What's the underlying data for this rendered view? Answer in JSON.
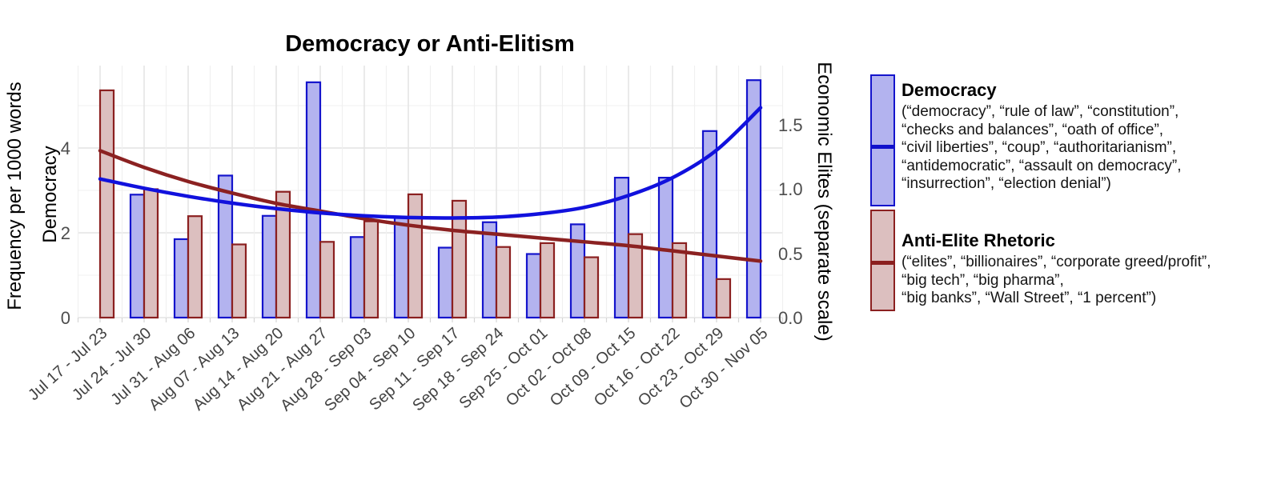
{
  "title": "Democracy or Anti-Elitism",
  "axes": {
    "left_outer_label": "Frequency per 1000 words",
    "left_label": "Democracy",
    "right_label": "Economic Elites (separate scale)",
    "left_ticks": [
      "0",
      "2",
      "4"
    ],
    "right_ticks": [
      "0.0",
      "0.5",
      "1.0",
      "1.5"
    ]
  },
  "colors": {
    "democracy_fill": "#b3b3ef",
    "democracy_stroke": "#1414cc",
    "democracy_trend": "#1111dd",
    "antielite_fill": "#dcbfbf",
    "antielite_stroke": "#8b2020",
    "antielite_trend": "#8b2121",
    "grid_major": "#e4e4e4",
    "grid_minor": "#f0f0f0",
    "tick_text": "#4d4d4d"
  },
  "chart_data": {
    "type": "bar",
    "title": "Democracy or Anti-Elitism",
    "xlabel": "",
    "ylabel_left": "Democracy (Frequency per 1000 words)",
    "ylabel_right": "Economic Elites (separate scale)",
    "grid": true,
    "legend_position": "right",
    "categories": [
      "Jul 17 - Jul 23",
      "Jul 24 - Jul 30",
      "Jul 31 - Aug 06",
      "Aug 07 - Aug 13",
      "Aug 14 - Aug 20",
      "Aug 21 - Aug 27",
      "Aug 28 - Sep 03",
      "Sep 04 - Sep 10",
      "Sep 11 - Sep 17",
      "Sep 18 - Sep 24",
      "Sep 25 - Oct 01",
      "Oct 02 - Oct 08",
      "Oct 09 - Oct 15",
      "Oct 16 - Oct 22",
      "Oct 23 - Oct 29",
      "Oct 30 - Nov 05"
    ],
    "y_left": {
      "ticks": [
        0,
        2,
        4
      ],
      "range": [
        0,
        5.95
      ]
    },
    "y_right": {
      "ticks": [
        0.0,
        0.5,
        1.0,
        1.5
      ],
      "range": [
        0,
        1.97
      ]
    },
    "series": [
      {
        "name": "Democracy",
        "axis": "left",
        "kind": "bar+smooth",
        "bar_values": [
          null,
          2.9,
          1.85,
          3.35,
          2.4,
          5.55,
          1.9,
          2.35,
          1.65,
          2.25,
          1.5,
          2.2,
          3.3,
          3.3,
          4.4,
          5.6
        ],
        "trend_values": [
          3.27,
          3.05,
          2.86,
          2.7,
          2.57,
          2.47,
          2.4,
          2.36,
          2.35,
          2.37,
          2.45,
          2.6,
          2.88,
          3.3,
          3.95,
          4.95
        ]
      },
      {
        "name": "Anti-Elite Rhetoric",
        "axis": "right",
        "kind": "bar+smooth",
        "bar_values": [
          1.77,
          1.0,
          0.79,
          0.57,
          0.98,
          0.59,
          0.75,
          0.96,
          0.91,
          0.55,
          0.58,
          0.47,
          0.65,
          0.58,
          0.3,
          null
        ],
        "trend_values": [
          1.3,
          1.17,
          1.06,
          0.97,
          0.89,
          0.83,
          0.77,
          0.72,
          0.68,
          0.65,
          0.62,
          0.59,
          0.56,
          0.52,
          0.48,
          0.44
        ]
      }
    ]
  },
  "legend": {
    "items": [
      {
        "title": "Democracy",
        "lines": [
          "(“democracy”, “rule of law”, “constitution”,",
          "“checks and balances”, “oath of office”,",
          "“civil liberties”, “coup”, “authoritarianism”,",
          "“antidemocratic”, “assault on democracy”,",
          "“insurrection”, “election denial”)"
        ]
      },
      {
        "title": "Anti-Elite Rhetoric",
        "lines": [
          "(“elites”, “billionaires”, “corporate greed/profit”,",
          "“big tech”, “big pharma”,",
          "“big banks”, “Wall Street”, “1 percent”)"
        ]
      }
    ]
  }
}
